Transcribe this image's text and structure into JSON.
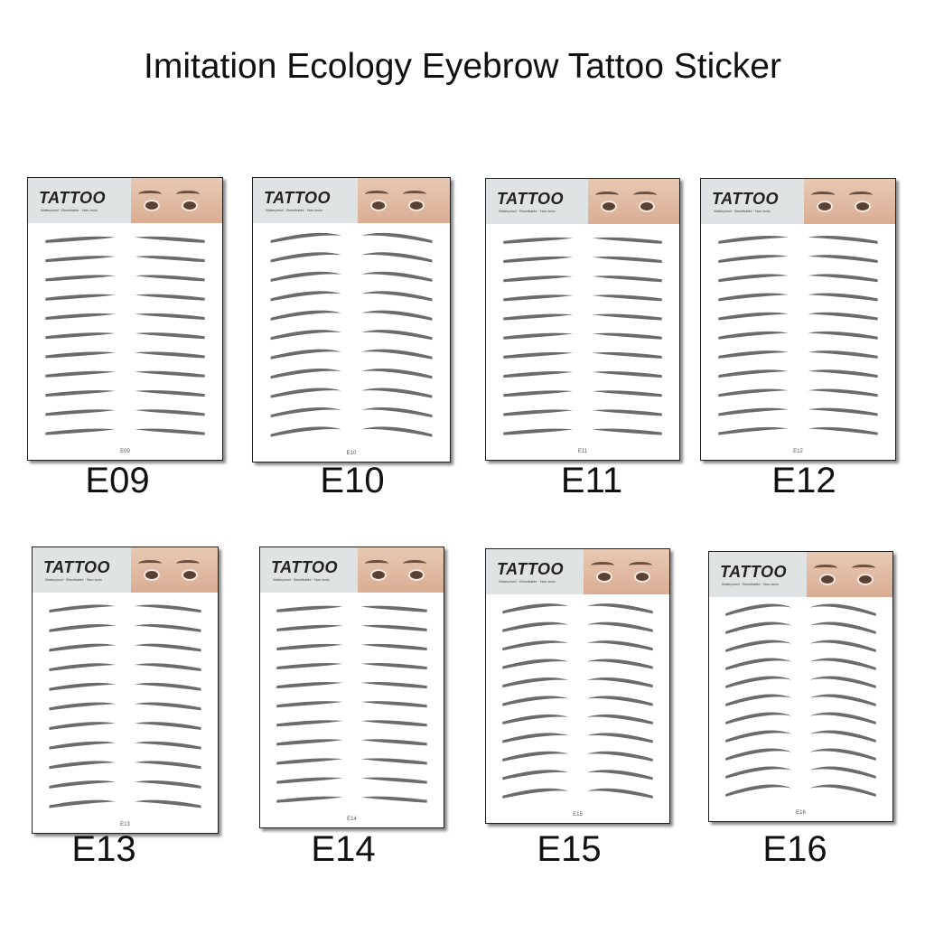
{
  "title": "Imitation Ecology Eyebrow Tattoo Sticker",
  "sheet": {
    "brand": "TATTOO",
    "features": "Waterproof · Breathable · Non-toxic"
  },
  "brow_color": "#3a3a3a",
  "products": [
    {
      "code": "E09",
      "style": "straight"
    },
    {
      "code": "E10",
      "style": "arched"
    },
    {
      "code": "E11",
      "style": "straight"
    },
    {
      "code": "E12",
      "style": "soft"
    },
    {
      "code": "E13",
      "style": "soft"
    },
    {
      "code": "E14",
      "style": "straight"
    },
    {
      "code": "E15",
      "style": "arched"
    },
    {
      "code": "E16",
      "style": "high-arch"
    }
  ]
}
